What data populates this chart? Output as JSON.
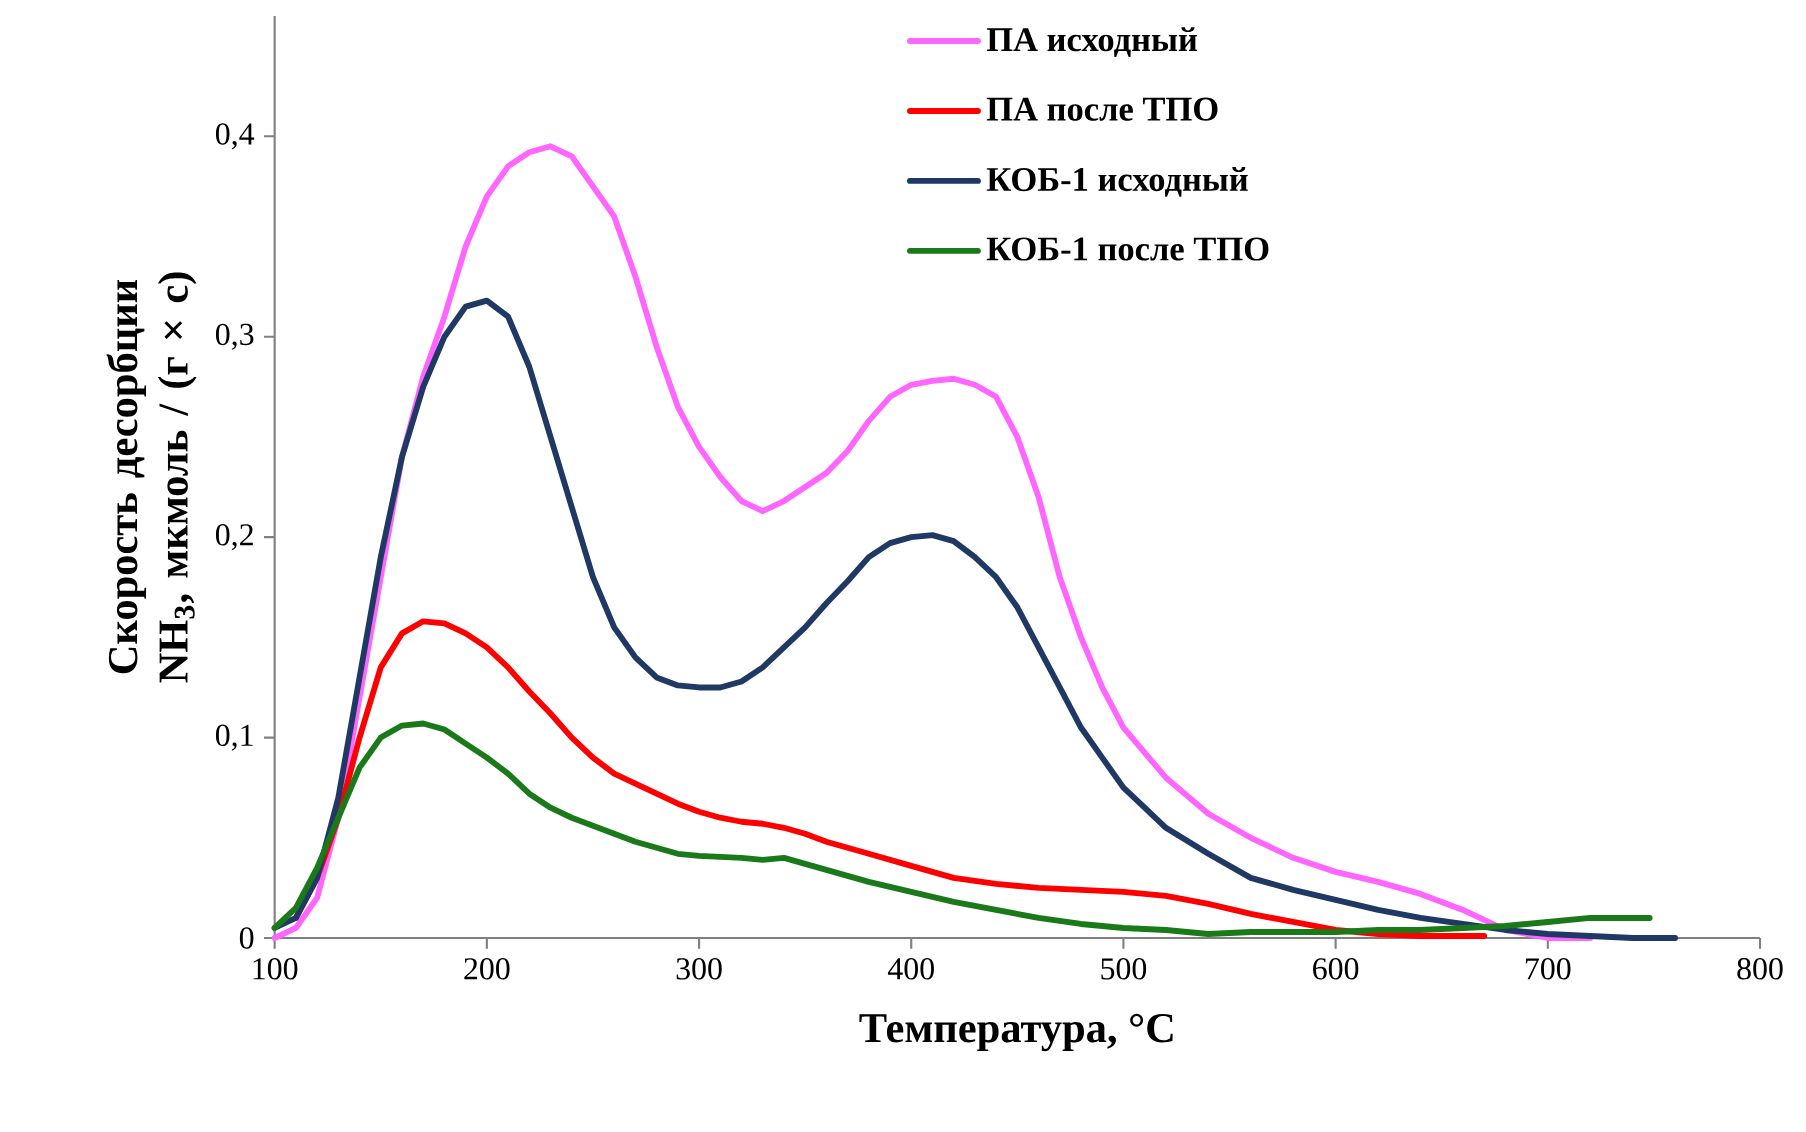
{
  "chart_data": {
    "type": "line",
    "xlabel": "Температура, °С",
    "ylabel": "Скорость десорбции NH$_{3}$, мкмоль / (г × с)",
    "xlim": [
      100,
      800
    ],
    "ylim": [
      0,
      0.46
    ],
    "xticks": [
      100,
      200,
      300,
      400,
      500,
      600,
      700,
      800
    ],
    "yticks": [
      0,
      {
        "value": 0.1,
        "label": "0,1"
      },
      {
        "value": 0.2,
        "label": "0,2"
      },
      {
        "value": 0.3,
        "label": "0,3"
      },
      {
        "value": 0.4,
        "label": "0,4"
      }
    ],
    "grid": false,
    "legend": "top right",
    "marker": "none",
    "line_style": "solid",
    "series": [
      {
        "name": "ПА исходный",
        "color": "#ff66ff",
        "x": [
          100,
          110,
          120,
          130,
          140,
          150,
          160,
          170,
          180,
          190,
          200,
          210,
          220,
          230,
          240,
          250,
          260,
          270,
          280,
          290,
          300,
          310,
          320,
          330,
          340,
          350,
          360,
          370,
          380,
          390,
          400,
          410,
          420,
          430,
          440,
          450,
          460,
          470,
          480,
          490,
          500,
          520,
          540,
          560,
          580,
          600,
          620,
          640,
          660,
          680,
          700,
          720
        ],
        "values": [
          0,
          0.005,
          0.02,
          0.06,
          0.12,
          0.18,
          0.24,
          0.28,
          0.31,
          0.345,
          0.37,
          0.385,
          0.392,
          0.395,
          0.39,
          0.375,
          0.36,
          0.33,
          0.295,
          0.265,
          0.245,
          0.23,
          0.218,
          0.213,
          0.218,
          0.225,
          0.232,
          0.243,
          0.258,
          0.27,
          0.276,
          0.278,
          0.279,
          0.276,
          0.27,
          0.25,
          0.22,
          0.18,
          0.15,
          0.125,
          0.105,
          0.08,
          0.062,
          0.05,
          0.04,
          0.033,
          0.028,
          0.022,
          0.014,
          0.004,
          0,
          0
        ]
      },
      {
        "name": "ПА после ТПО",
        "color": "#ff0000",
        "x": [
          110,
          120,
          130,
          140,
          150,
          160,
          170,
          180,
          190,
          200,
          210,
          220,
          230,
          240,
          250,
          260,
          270,
          280,
          290,
          300,
          310,
          320,
          330,
          340,
          350,
          360,
          380,
          400,
          420,
          440,
          460,
          480,
          500,
          520,
          540,
          560,
          580,
          600,
          620,
          640,
          670
        ],
        "values": [
          0.01,
          0.03,
          0.06,
          0.1,
          0.135,
          0.152,
          0.158,
          0.157,
          0.152,
          0.145,
          0.135,
          0.123,
          0.112,
          0.1,
          0.09,
          0.082,
          0.077,
          0.072,
          0.067,
          0.063,
          0.06,
          0.058,
          0.057,
          0.055,
          0.052,
          0.048,
          0.042,
          0.036,
          0.03,
          0.027,
          0.025,
          0.024,
          0.023,
          0.021,
          0.017,
          0.012,
          0.008,
          0.004,
          0.002,
          0.001,
          0.001
        ]
      },
      {
        "name": "КОБ-1 исходный",
        "color": "#1f3864",
        "x": [
          100,
          110,
          120,
          130,
          140,
          150,
          160,
          170,
          180,
          190,
          200,
          210,
          220,
          230,
          240,
          250,
          260,
          270,
          280,
          290,
          300,
          310,
          320,
          330,
          340,
          350,
          360,
          370,
          380,
          390,
          400,
          410,
          420,
          430,
          440,
          450,
          460,
          470,
          480,
          490,
          500,
          510,
          520,
          540,
          560,
          580,
          600,
          620,
          640,
          660,
          680,
          700,
          720,
          740,
          760
        ],
        "values": [
          0.005,
          0.01,
          0.03,
          0.07,
          0.13,
          0.19,
          0.24,
          0.275,
          0.3,
          0.315,
          0.318,
          0.31,
          0.285,
          0.25,
          0.215,
          0.18,
          0.155,
          0.14,
          0.13,
          0.126,
          0.125,
          0.125,
          0.128,
          0.135,
          0.145,
          0.155,
          0.167,
          0.178,
          0.19,
          0.197,
          0.2,
          0.201,
          0.198,
          0.19,
          0.18,
          0.165,
          0.145,
          0.125,
          0.105,
          0.09,
          0.075,
          0.065,
          0.055,
          0.042,
          0.03,
          0.024,
          0.019,
          0.014,
          0.01,
          0.007,
          0.004,
          0.002,
          0.001,
          0,
          0
        ]
      },
      {
        "name": "КОБ-1 после ТПО",
        "color": "#1a7a1a",
        "x": [
          100,
          110,
          120,
          130,
          140,
          150,
          160,
          170,
          180,
          190,
          200,
          210,
          220,
          230,
          240,
          250,
          260,
          270,
          280,
          290,
          300,
          320,
          330,
          340,
          350,
          360,
          380,
          400,
          420,
          440,
          460,
          480,
          500,
          520,
          540,
          560,
          580,
          600,
          620,
          640,
          660,
          680,
          700,
          720,
          740,
          748
        ],
        "values": [
          0.005,
          0.015,
          0.035,
          0.06,
          0.085,
          0.1,
          0.106,
          0.107,
          0.104,
          0.097,
          0.09,
          0.082,
          0.072,
          0.065,
          0.06,
          0.056,
          0.052,
          0.048,
          0.045,
          0.042,
          0.041,
          0.04,
          0.039,
          0.04,
          0.037,
          0.034,
          0.028,
          0.023,
          0.018,
          0.014,
          0.01,
          0.007,
          0.005,
          0.004,
          0.002,
          0.003,
          0.003,
          0.003,
          0.004,
          0.004,
          0.005,
          0.006,
          0.008,
          0.01,
          0.01,
          0.01
        ]
      }
    ]
  }
}
